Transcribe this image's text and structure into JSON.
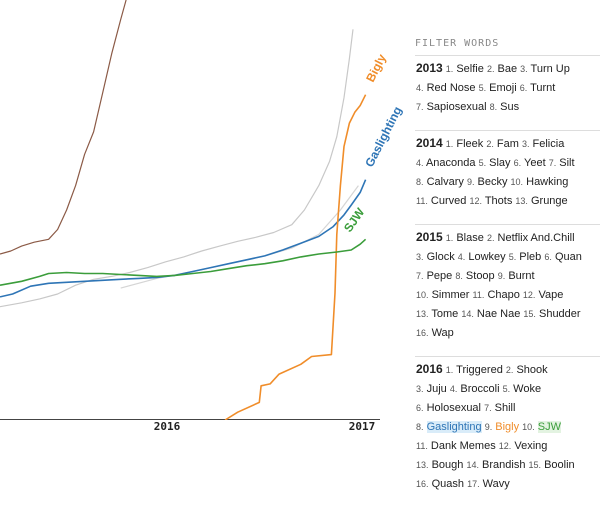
{
  "chart_data": {
    "type": "line",
    "x_ticks": [
      "2016",
      "2017"
    ],
    "series": [
      {
        "name": "",
        "color": "#8b5a46",
        "points": [
          [
            2014.93,
            4
          ],
          [
            2014.99,
            4.3
          ],
          [
            2015.05,
            4.8
          ],
          [
            2015.12,
            5.2
          ],
          [
            2015.2,
            5.5
          ],
          [
            2015.25,
            6.5
          ],
          [
            2015.3,
            8.5
          ],
          [
            2015.35,
            11
          ],
          [
            2015.4,
            14.2
          ],
          [
            2015.45,
            16.5
          ],
          [
            2015.5,
            20.5
          ],
          [
            2015.55,
            24.5
          ],
          [
            2015.6,
            28
          ],
          [
            2015.63,
            30
          ]
        ]
      },
      {
        "name": "",
        "color": "#c8c8c8",
        "points": [
          [
            2014.93,
            -1.4
          ],
          [
            2015.05,
            -1.0
          ],
          [
            2015.15,
            -0.6
          ],
          [
            2015.25,
            -0.1
          ],
          [
            2015.35,
            0.8
          ],
          [
            2015.45,
            1.4
          ],
          [
            2015.55,
            1.7
          ],
          [
            2015.65,
            2.1
          ],
          [
            2015.75,
            2.6
          ],
          [
            2015.85,
            3.2
          ],
          [
            2015.95,
            3.7
          ],
          [
            2016.05,
            4.3
          ],
          [
            2016.15,
            4.8
          ],
          [
            2016.25,
            5.3
          ],
          [
            2016.35,
            5.7
          ],
          [
            2016.45,
            6.2
          ],
          [
            2016.55,
            7.0
          ],
          [
            2016.62,
            8.5
          ],
          [
            2016.7,
            11
          ],
          [
            2016.76,
            13.5
          ],
          [
            2016.8,
            16
          ],
          [
            2016.84,
            20
          ],
          [
            2016.87,
            24
          ],
          [
            2016.89,
            27
          ]
        ]
      },
      {
        "name": "",
        "color": "#d5d5d5",
        "points": [
          [
            2015.6,
            0.5
          ],
          [
            2015.8,
            1.5
          ],
          [
            2016.0,
            2.2
          ],
          [
            2016.2,
            3.0
          ],
          [
            2016.4,
            3.8
          ],
          [
            2016.55,
            4.6
          ],
          [
            2016.7,
            6.0
          ],
          [
            2016.82,
            8.5
          ],
          [
            2016.92,
            11
          ]
        ]
      },
      {
        "name": "Gaslighting",
        "color": "#2e75b6",
        "points": [
          [
            2014.93,
            -0.4
          ],
          [
            2015.0,
            -0.1
          ],
          [
            2015.1,
            0.7
          ],
          [
            2015.2,
            1.0
          ],
          [
            2015.3,
            1.1
          ],
          [
            2015.4,
            1.2
          ],
          [
            2015.5,
            1.3
          ],
          [
            2015.6,
            1.4
          ],
          [
            2015.7,
            1.5
          ],
          [
            2015.8,
            1.6
          ],
          [
            2015.9,
            1.8
          ],
          [
            2016.0,
            2.2
          ],
          [
            2016.1,
            2.6
          ],
          [
            2016.2,
            3.0
          ],
          [
            2016.3,
            3.4
          ],
          [
            2016.4,
            3.8
          ],
          [
            2016.5,
            4.4
          ],
          [
            2016.6,
            5.1
          ],
          [
            2016.7,
            5.8
          ],
          [
            2016.78,
            6.8
          ],
          [
            2016.84,
            8.0
          ],
          [
            2016.88,
            9.0
          ],
          [
            2016.93,
            10.3
          ],
          [
            2016.96,
            11.6
          ]
        ]
      },
      {
        "name": "Bigly",
        "color": "#f08d2a",
        "points": [
          [
            2016.18,
            -13
          ],
          [
            2016.25,
            -12.2
          ],
          [
            2016.37,
            -11.2
          ],
          [
            2016.38,
            -9.5
          ],
          [
            2016.43,
            -9.3
          ],
          [
            2016.48,
            -8.3
          ],
          [
            2016.6,
            -7.3
          ],
          [
            2016.66,
            -6.5
          ],
          [
            2016.77,
            -6.3
          ],
          [
            2016.79,
            0
          ],
          [
            2016.8,
            6
          ],
          [
            2016.82,
            11
          ],
          [
            2016.84,
            15
          ],
          [
            2016.87,
            17.4
          ],
          [
            2016.9,
            18.5
          ],
          [
            2016.93,
            19.2
          ],
          [
            2016.96,
            20.3
          ]
        ]
      },
      {
        "name": "SJW",
        "color": "#3b9d3b",
        "points": [
          [
            2014.93,
            0.8
          ],
          [
            2015.05,
            1.2
          ],
          [
            2015.15,
            1.7
          ],
          [
            2015.2,
            2.0
          ],
          [
            2015.3,
            2.1
          ],
          [
            2015.4,
            2.0
          ],
          [
            2015.5,
            2.0
          ],
          [
            2015.6,
            1.9
          ],
          [
            2015.7,
            1.8
          ],
          [
            2015.8,
            1.7
          ],
          [
            2015.9,
            1.8
          ],
          [
            2016.0,
            2.0
          ],
          [
            2016.1,
            2.2
          ],
          [
            2016.2,
            2.5
          ],
          [
            2016.3,
            2.8
          ],
          [
            2016.4,
            3.0
          ],
          [
            2016.5,
            3.3
          ],
          [
            2016.6,
            3.7
          ],
          [
            2016.7,
            4.0
          ],
          [
            2016.8,
            4.2
          ],
          [
            2016.88,
            4.4
          ],
          [
            2016.93,
            5.0
          ],
          [
            2016.96,
            5.5
          ]
        ]
      }
    ],
    "xlim": [
      2014.93,
      2017.04
    ],
    "ylim": [
      -13,
      30
    ],
    "grid": false,
    "legend": "inline labels at line ends"
  },
  "filter_panel": {
    "title": "FILTER WORDS",
    "groups": [
      {
        "year": "2013",
        "lines": [
          [
            [
              "1.",
              "Selfie"
            ],
            [
              "2.",
              "Bae"
            ],
            [
              "3.",
              "Turn Up"
            ]
          ],
          [
            [
              "4.",
              "Red Nose"
            ],
            [
              "5.",
              "Emoji"
            ],
            [
              "6.",
              "Turnt"
            ]
          ],
          [
            [
              "7.",
              "Sapiosexual"
            ],
            [
              "8.",
              "Sus"
            ]
          ]
        ]
      },
      {
        "year": "2014",
        "lines": [
          [
            [
              "1.",
              "Fleek"
            ],
            [
              "2.",
              "Fam"
            ],
            [
              "3.",
              "Felicia"
            ]
          ],
          [
            [
              "4.",
              "Anaconda"
            ],
            [
              "5.",
              "Slay"
            ],
            [
              "6.",
              "Yeet"
            ],
            [
              "7.",
              "Silt"
            ]
          ],
          [
            [
              "8.",
              "Calvary"
            ],
            [
              "9.",
              "Becky"
            ],
            [
              "10.",
              "Hawking"
            ]
          ],
          [
            [
              "11.",
              "Curved"
            ],
            [
              "12.",
              "Thots"
            ],
            [
              "13.",
              "Grunge"
            ]
          ]
        ]
      },
      {
        "year": "2015",
        "lines": [
          [
            [
              "1.",
              "Blase"
            ],
            [
              "2.",
              "Netflix And.Chill"
            ]
          ],
          [
            [
              "3.",
              "Glock"
            ],
            [
              "4.",
              "Lowkey"
            ],
            [
              "5.",
              "Pleb"
            ],
            [
              "6.",
              "Quan"
            ]
          ],
          [
            [
              "7.",
              "Pepe"
            ],
            [
              "8.",
              "Stoop"
            ],
            [
              "9.",
              "Burnt"
            ]
          ],
          [
            [
              "10.",
              "Simmer"
            ],
            [
              "11.",
              "Chapo"
            ],
            [
              "12.",
              "Vape"
            ]
          ],
          [
            [
              "13.",
              "Tome"
            ],
            [
              "14.",
              "Nae Nae"
            ],
            [
              "15.",
              "Shudder"
            ]
          ],
          [
            [
              "16.",
              "Wap"
            ]
          ]
        ]
      },
      {
        "year": "2016",
        "lines": [
          [
            [
              "1.",
              "Triggered"
            ],
            [
              "2.",
              "Shook"
            ]
          ],
          [
            [
              "3.",
              "Juju"
            ],
            [
              "4.",
              "Broccoli"
            ],
            [
              "5.",
              "Woke"
            ]
          ],
          [
            [
              "6.",
              "Holosexual"
            ],
            [
              "7.",
              "Shill"
            ]
          ],
          [
            [
              "8.",
              "Gaslighting",
              "hl-blue"
            ],
            [
              "9.",
              "Bigly",
              "hl-orange"
            ],
            [
              "10.",
              "SJW",
              "hl-green"
            ]
          ],
          [
            [
              "11.",
              "Dank Memes"
            ],
            [
              "12.",
              "Vexing"
            ]
          ],
          [
            [
              "13.",
              "Bough"
            ],
            [
              "14.",
              "Brandish"
            ],
            [
              "15.",
              "Boolin"
            ]
          ],
          [
            [
              "16.",
              "Quash"
            ],
            [
              "17.",
              "Wavy"
            ]
          ]
        ]
      }
    ]
  }
}
